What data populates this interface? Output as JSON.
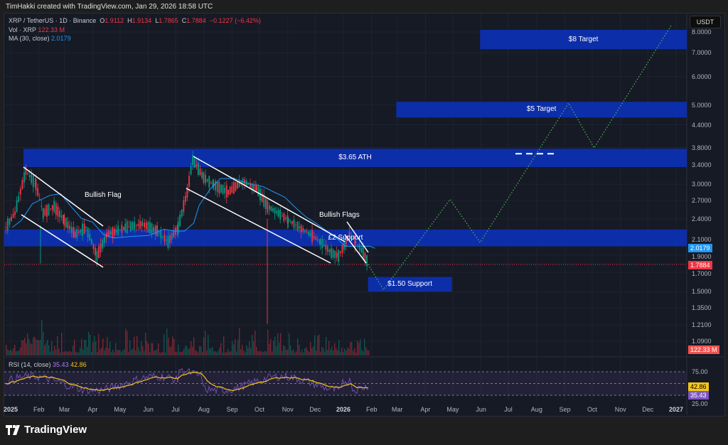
{
  "header": {
    "text": "TimHakki created with TradingView.com, Jan 29, 2026 18:58 UTC"
  },
  "legend": {
    "symbol": "XRP / TetherUS · 1D · Binance",
    "o_label": "O",
    "o": "1.9112",
    "h_label": "H",
    "h": "1.9134",
    "l_label": "L",
    "l": "1.7865",
    "c_label": "C",
    "c": "1.7884",
    "change": "−0.1227 (−6.42%)",
    "vol_label": "Vol · XRP",
    "vol": "122.33 M",
    "ma_label": "MA (30, close)",
    "ma": "2.0179",
    "rsi_label": "RSI (14, close)",
    "rsi": "35.43",
    "rsi_ma": "42.86"
  },
  "currency_button": "USDT",
  "brand": "TradingView",
  "colors": {
    "zone": "#0d2fb0",
    "up": "#089981",
    "down": "#f23645",
    "ma": "#2196f3",
    "projection": "#4caf50",
    "rsi": "#7e57c2",
    "rsi_ma": "#f5c518"
  },
  "chart_data": {
    "type": "candlestick",
    "scale": "log",
    "ylim": [
      1.05,
      8.6
    ],
    "xlim": [
      "2024-12-26",
      "2027-01-05"
    ],
    "price_ticks": [
      "8.0000",
      "7.0000",
      "6.0000",
      "5.0000",
      "4.4000",
      "3.8000",
      "3.4000",
      "3.0000",
      "2.7000",
      "2.4000",
      "2.1000",
      "1.9000",
      "1.7000",
      "1.5000",
      "1.3500",
      "1.2100",
      "1.0900"
    ],
    "time_ticks": [
      {
        "label": "2025",
        "date": "2025-01-01",
        "bold": true
      },
      {
        "label": "Feb",
        "date": "2025-02-01"
      },
      {
        "label": "Mar",
        "date": "2025-03-01"
      },
      {
        "label": "Apr",
        "date": "2025-04-01"
      },
      {
        "label": "May",
        "date": "2025-05-01"
      },
      {
        "label": "Jun",
        "date": "2025-06-01"
      },
      {
        "label": "Jul",
        "date": "2025-07-01"
      },
      {
        "label": "Aug",
        "date": "2025-08-01"
      },
      {
        "label": "Sep",
        "date": "2025-09-01"
      },
      {
        "label": "Oct",
        "date": "2025-10-01"
      },
      {
        "label": "Nov",
        "date": "2025-11-01"
      },
      {
        "label": "Dec",
        "date": "2025-12-01"
      },
      {
        "label": "2026",
        "date": "2026-01-01",
        "bold": true
      },
      {
        "label": "Feb",
        "date": "2026-02-01"
      },
      {
        "label": "Mar",
        "date": "2026-03-01"
      },
      {
        "label": "Apr",
        "date": "2026-04-01"
      },
      {
        "label": "May",
        "date": "2026-05-01"
      },
      {
        "label": "Jun",
        "date": "2026-06-01"
      },
      {
        "label": "Jul",
        "date": "2026-07-01"
      },
      {
        "label": "Aug",
        "date": "2026-08-01"
      },
      {
        "label": "Sep",
        "date": "2026-09-01"
      },
      {
        "label": "Oct",
        "date": "2026-10-01"
      },
      {
        "label": "Nov",
        "date": "2026-11-01"
      },
      {
        "label": "Dec",
        "date": "2026-12-01"
      },
      {
        "label": "2027",
        "date": "2027-01-01",
        "bold": true
      }
    ],
    "price_path": [
      [
        "2024-12-26",
        2.27
      ],
      [
        "2025-01-05",
        2.49
      ],
      [
        "2025-01-17",
        3.27
      ],
      [
        "2025-01-28",
        2.99
      ],
      [
        "2025-02-05",
        2.49
      ],
      [
        "2025-02-17",
        2.6
      ],
      [
        "2025-02-28",
        2.38
      ],
      [
        "2025-03-12",
        2.17
      ],
      [
        "2025-03-24",
        2.27
      ],
      [
        "2025-04-05",
        1.89
      ],
      [
        "2025-04-16",
        2.17
      ],
      [
        "2025-05-06",
        2.27
      ],
      [
        "2025-05-25",
        2.32
      ],
      [
        "2025-06-10",
        2.22
      ],
      [
        "2025-06-22",
        2.07
      ],
      [
        "2025-07-03",
        2.27
      ],
      [
        "2025-07-13",
        2.85
      ],
      [
        "2025-07-19",
        3.51
      ],
      [
        "2025-07-31",
        3.13
      ],
      [
        "2025-08-11",
        2.99
      ],
      [
        "2025-08-27",
        2.85
      ],
      [
        "2025-09-12",
        3.06
      ],
      [
        "2025-09-27",
        2.92
      ],
      [
        "2025-10-09",
        2.6
      ],
      [
        "2025-10-21",
        2.49
      ],
      [
        "2025-11-01",
        2.38
      ],
      [
        "2025-11-13",
        2.27
      ],
      [
        "2025-11-25",
        2.17
      ],
      [
        "2025-12-06",
        2.07
      ],
      [
        "2025-12-18",
        1.93
      ],
      [
        "2025-12-26",
        1.89
      ],
      [
        "2026-01-07",
        2.17
      ],
      [
        "2026-01-14",
        2.07
      ],
      [
        "2026-01-22",
        1.93
      ],
      [
        "2026-01-28",
        1.79
      ]
    ],
    "last_price": 1.7884,
    "ma_value": 2.0179,
    "volume_last": "122.33 M",
    "zones": [
      {
        "label": "$8 Target",
        "from": "2026-05-31",
        "to": "end",
        "low": 7.16,
        "high": 8.11
      },
      {
        "label": "$5 Target",
        "from": "2026-02-28",
        "to": "end",
        "low": 4.61,
        "high": 5.1
      },
      {
        "label": "$3.65 ATH",
        "from": "2025-01-15",
        "to": "end",
        "low": 3.35,
        "high": 3.77
      },
      {
        "label": "£2 Support",
        "from": "start",
        "to": "end",
        "low": 2.01,
        "high": 2.24
      },
      {
        "label": "$1.50 Support",
        "from": "2026-01-28",
        "to": "2026-04-30",
        "low": 1.5,
        "high": 1.65
      }
    ],
    "ath_line": 3.65,
    "projection": [
      [
        "2026-01-28",
        1.79
      ],
      [
        "2026-02-14",
        1.52
      ],
      [
        "2026-04-28",
        2.72
      ],
      [
        "2026-05-31",
        2.06
      ],
      [
        "2026-09-05",
        5.06
      ],
      [
        "2026-10-03",
        3.79
      ],
      [
        "2026-12-27",
        8.37
      ]
    ],
    "annotations": [
      "Bullish Flag",
      "Bullish Flags"
    ],
    "rsi": {
      "value": 35.43,
      "ma": 42.86,
      "levels": [
        25,
        50,
        75
      ],
      "ticks": [
        "75.00",
        "25.00"
      ]
    }
  }
}
